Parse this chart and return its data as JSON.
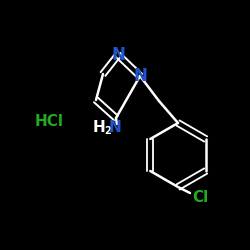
{
  "background_color": "#000000",
  "atom_colors": {
    "N_blue": "#2255cc",
    "Cl_green": "#22aa22",
    "HCl_H": "#22aa22",
    "NH2_H2": "#ffffff",
    "NH2_N": "#2255cc",
    "bond": "#ffffff"
  },
  "figsize": [
    2.5,
    2.5
  ],
  "dpi": 100,
  "xlim": [
    0,
    250
  ],
  "ylim": [
    0,
    250
  ]
}
